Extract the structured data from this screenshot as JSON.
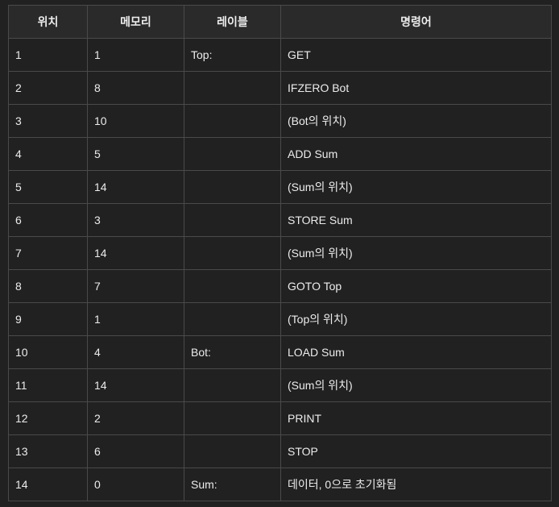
{
  "table": {
    "headers": [
      "위치",
      "메모리",
      "레이블",
      "명령어"
    ],
    "rows": [
      [
        "1",
        "1",
        "Top:",
        "GET"
      ],
      [
        "2",
        "8",
        "",
        "IFZERO Bot"
      ],
      [
        "3",
        "10",
        "",
        "(Bot의 위치)"
      ],
      [
        "4",
        "5",
        "",
        "ADD Sum"
      ],
      [
        "5",
        "14",
        "",
        "(Sum의 위치)"
      ],
      [
        "6",
        "3",
        "",
        "STORE Sum"
      ],
      [
        "7",
        "14",
        "",
        "(Sum의 위치)"
      ],
      [
        "8",
        "7",
        "",
        "GOTO Top"
      ],
      [
        "9",
        "1",
        "",
        "(Top의 위치)"
      ],
      [
        "10",
        "4",
        "Bot:",
        "LOAD Sum"
      ],
      [
        "11",
        "14",
        "",
        "(Sum의 위치)"
      ],
      [
        "12",
        "2",
        "",
        "PRINT"
      ],
      [
        "13",
        "6",
        "",
        "STOP"
      ],
      [
        "14",
        "0",
        "Sum:",
        "데이터, 0으로 초기화됨"
      ]
    ]
  }
}
